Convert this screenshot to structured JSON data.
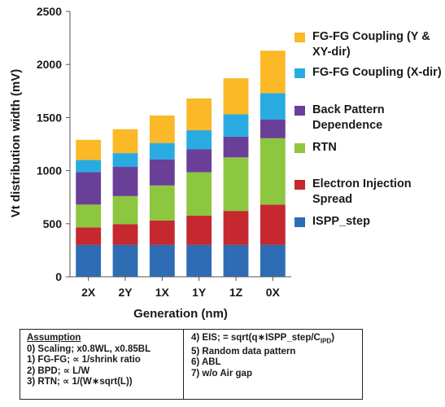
{
  "chart_data": {
    "type": "bar",
    "stacked": true,
    "title": "",
    "xlabel": "Generation (nm)",
    "ylabel": "Vt distribution width (mV)",
    "ylim": [
      0,
      2500
    ],
    "yticks": [
      0,
      500,
      1000,
      1500,
      2000,
      2500
    ],
    "grid": false,
    "legend_position": "right",
    "categories": [
      "2X",
      "2Y",
      "1X",
      "1Y",
      "1Z",
      "0X"
    ],
    "series": [
      {
        "name": "ISPP_step",
        "color": "#2e6db4",
        "values": [
          300,
          300,
          300,
          300,
          300,
          300
        ]
      },
      {
        "name": "Electron Injection Spread",
        "color": "#c5282f",
        "values": [
          165,
          195,
          230,
          275,
          320,
          380
        ]
      },
      {
        "name": "RTN",
        "color": "#8dc63f",
        "values": [
          215,
          265,
          330,
          410,
          505,
          625
        ]
      },
      {
        "name": "Back Pattern Dependence",
        "color": "#6a3f98",
        "values": [
          305,
          275,
          245,
          215,
          195,
          175
        ]
      },
      {
        "name": "FG-FG Coupling (X-dir)",
        "color": "#29abe2",
        "values": [
          115,
          130,
          155,
          180,
          210,
          250
        ]
      },
      {
        "name": "FG-FG Coupling (Y & XY-dir)",
        "color": "#fbb927",
        "values": [
          190,
          225,
          260,
          300,
          340,
          400
        ]
      }
    ]
  },
  "legend": [
    {
      "label": "FG-FG Coupling (Y & XY-dir)",
      "color": "#fbb927"
    },
    {
      "label": "FG-FG Coupling (X-dir)",
      "color": "#29abe2"
    },
    {
      "label": "Back Pattern Dependence",
      "color": "#6a3f98"
    },
    {
      "label": "RTN",
      "color": "#8dc63f"
    },
    {
      "label": "Electron Injection Spread",
      "color": "#c5282f"
    },
    {
      "label": "ISPP_step",
      "color": "#2e6db4"
    }
  ],
  "assumptions": {
    "heading": "Assumption",
    "left": [
      "0) Scaling; x0.8WL, x0.85BL",
      "1) FG-FG; ∝ 1/shrink ratio",
      "2) BPD; ∝ L/W",
      "3) RTN; ∝ 1/(W∗sqrt(L))"
    ],
    "right_eis_prefix": "4) EIS; = sqrt(q∗ISPP_step/C",
    "right_eis_sub": "IPD",
    "right_eis_suffix": ")",
    "right": [
      "5) Random data pattern",
      "6) ABL",
      "7) w/o Air gap"
    ]
  }
}
